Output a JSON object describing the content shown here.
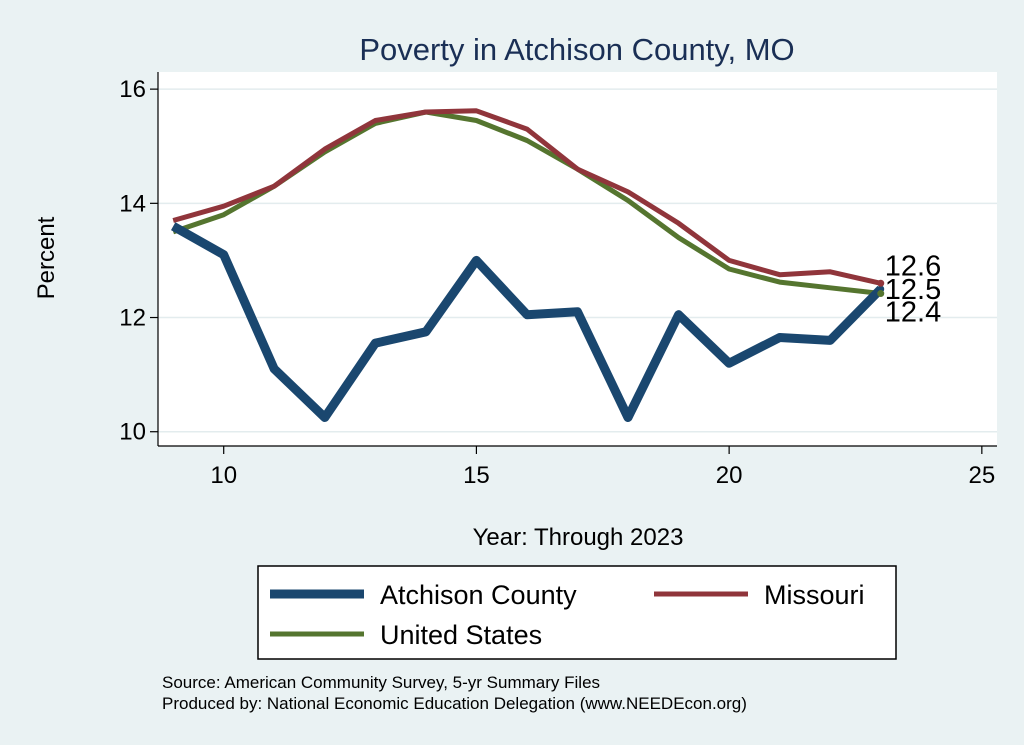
{
  "chart_data": {
    "type": "line",
    "title": "Poverty in Atchison County, MO",
    "xlabel": "Year: Through 2023",
    "ylabel": "Percent",
    "xlim": [
      8.7,
      25.3
    ],
    "ylim": [
      9.75,
      16.3
    ],
    "xticks": [
      10,
      15,
      20,
      25
    ],
    "yticks": [
      10,
      12,
      14,
      16
    ],
    "grid": true,
    "legend_position": "bottom",
    "x": [
      9,
      10,
      11,
      12,
      13,
      14,
      15,
      16,
      17,
      18,
      19,
      20,
      21,
      22,
      23
    ],
    "series": [
      {
        "name": "Atchison County",
        "color": "#1a476f",
        "values": [
          13.6,
          13.1,
          11.1,
          10.25,
          11.55,
          11.75,
          13.0,
          12.05,
          12.1,
          10.25,
          12.05,
          11.2,
          11.65,
          11.6,
          12.5
        ],
        "end_label": "12.5"
      },
      {
        "name": "Missouri",
        "color": "#90353b",
        "values": [
          13.7,
          13.95,
          14.3,
          14.95,
          15.45,
          15.6,
          15.62,
          15.3,
          14.6,
          14.2,
          13.65,
          13.0,
          12.75,
          12.8,
          12.6
        ],
        "end_label": "12.6"
      },
      {
        "name": "United States",
        "color": "#55752f",
        "values": [
          13.5,
          13.8,
          14.3,
          14.9,
          15.4,
          15.6,
          15.45,
          15.1,
          14.6,
          14.05,
          13.4,
          12.85,
          12.62,
          12.52,
          12.42
        ],
        "end_label": "12.4"
      }
    ],
    "notes": [
      "Source: American Community Survey, 5-yr Summary Files",
      "Produced by: National Economic Education Delegation (www.NEEDEcon.org)"
    ]
  }
}
